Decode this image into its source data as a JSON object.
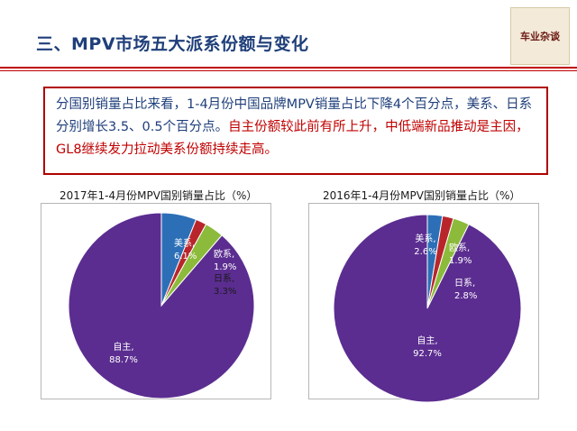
{
  "slide": {
    "title": "三、MPV市场五大派系份额与变化",
    "logo_text": "车业杂谈"
  },
  "summary": {
    "normal_text": "分国别销量占比来看，1-4月份中国品牌MPV销量占比下降4个百分点，美系、日系分别增长3.5、0.5个百分点。",
    "highlight_text": "自主份额较此前有所上升，中低端新品推动是主因，GL8继续发力拉动美系份额持续走高。"
  },
  "colors": {
    "accent_red": "#c00000",
    "title_blue": "#1f3f7a",
    "slice_zizhu": "#5b2d90",
    "slice_meixi": "#2c6fb7",
    "slice_ouxi": "#b8262b",
    "slice_rixi": "#8cbb3b"
  },
  "chart_data": [
    {
      "type": "pie",
      "title": "2017年1-4月份MPV国别销量占比（%）",
      "slices": [
        {
          "name": "自主",
          "value": 88.7,
          "label": "自主,",
          "value_label": "88.7%"
        },
        {
          "name": "美系",
          "value": 6.1,
          "label": "美系,",
          "value_label": "6.1%"
        },
        {
          "name": "欧系",
          "value": 1.9,
          "label": "欧系,",
          "value_label": "1.9%"
        },
        {
          "name": "日系",
          "value": 3.3,
          "label": "日系,",
          "value_label": "3.3%"
        }
      ]
    },
    {
      "type": "pie",
      "title": "2016年1-4月份MPV国别销量占比（%）",
      "slices": [
        {
          "name": "自主",
          "value": 92.7,
          "label": "自主,",
          "value_label": "92.7%"
        },
        {
          "name": "美系",
          "value": 2.6,
          "label": "美系,",
          "value_label": "2.6%"
        },
        {
          "name": "欧系",
          "value": 1.9,
          "label": "欧系,",
          "value_label": "1.9%"
        },
        {
          "name": "日系",
          "value": 2.8,
          "label": "日系,",
          "value_label": "2.8%"
        }
      ]
    }
  ]
}
